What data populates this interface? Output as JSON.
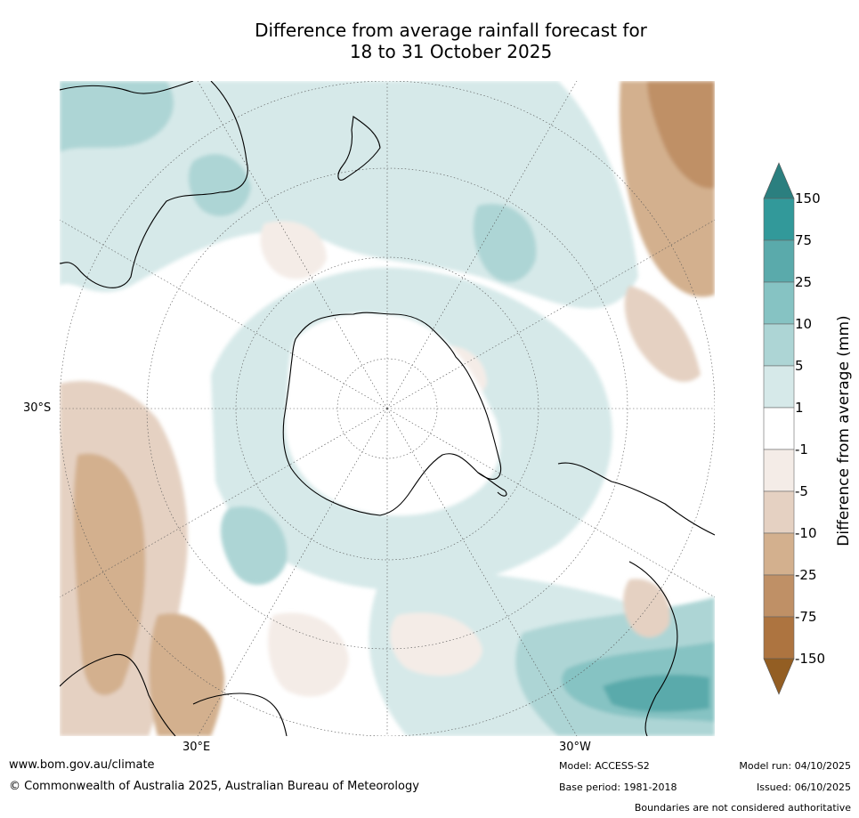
{
  "title": {
    "line1": "Difference from average rainfall forecast for",
    "line2": "18 to 31 October 2025"
  },
  "map": {
    "projection": "south-polar-stereographic",
    "latitude_labels": [
      "30°S"
    ],
    "longitude_labels": [
      "30°E",
      "30°W"
    ]
  },
  "colorbar": {
    "title": "Difference from average (mm)",
    "ticks": [
      "150",
      "75",
      "25",
      "10",
      "5",
      "1",
      "-1",
      "-5",
      "-10",
      "-25",
      "-75",
      "-150"
    ],
    "bands": [
      {
        "range": "> 150",
        "color": "#2b7f7f"
      },
      {
        "range": "75 to 150",
        "color": "#32999a"
      },
      {
        "range": "25 to 75",
        "color": "#5aaaab"
      },
      {
        "range": "10 to 25",
        "color": "#86c3c3"
      },
      {
        "range": "5 to 10",
        "color": "#add5d5"
      },
      {
        "range": "1 to 5",
        "color": "#d6e9e9"
      },
      {
        "range": "-1 to 1",
        "color": "#ffffff"
      },
      {
        "range": "-5 to -1",
        "color": "#f4ece7"
      },
      {
        "range": "-10 to -5",
        "color": "#e5d1c2"
      },
      {
        "range": "-25 to -10",
        "color": "#d3b08e"
      },
      {
        "range": "-75 to -25",
        "color": "#bf9066"
      },
      {
        "range": "-150 to -75",
        "color": "#ad7440"
      },
      {
        "range": "< -150",
        "color": "#935e23"
      }
    ]
  },
  "footer": {
    "website": "www.bom.gov.au/climate",
    "copyright": "© Commonwealth of Australia 2025, Australian Bureau of Meteorology",
    "model": "Model: ACCESS-S2",
    "base_period": "Base period: 1981-2018",
    "model_run": "Model run: 04/10/2025",
    "issued": "Issued: 06/10/2025",
    "disclaimer": "Boundaries are not considered authoritative"
  }
}
